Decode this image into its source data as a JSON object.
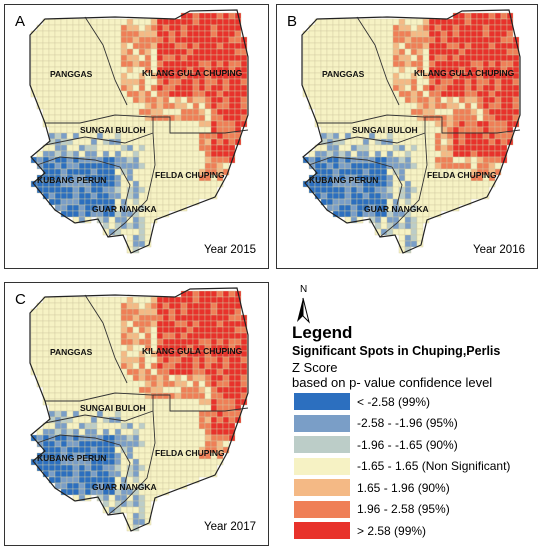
{
  "panels": [
    {
      "letter": "A",
      "year": "Year 2015",
      "hot": "low"
    },
    {
      "letter": "B",
      "year": "Year 2016",
      "hot": "high"
    },
    {
      "letter": "C",
      "year": "Year 2017",
      "hot": "low"
    }
  ],
  "regions": {
    "panggas": "PANGGAS",
    "kilang": "KILANG GULA CHUPING",
    "sungai": "SUNGAI BULOH",
    "kubang": "KUBANG PERUN",
    "felda": "FELDA CHUPING",
    "guar": "GUAR NANGKA"
  },
  "legend": {
    "north": "N",
    "title": "Legend",
    "subtitle": "Significant Spots in Chuping,Perlis",
    "zscore": "Z Score",
    "basis": "based on p- value confidence level",
    "items": [
      {
        "label": "< -2.58 (99%)",
        "color": "#2c6fbf"
      },
      {
        "label": "-2.58 - -1.96 (95%)",
        "color": "#7a9ec7"
      },
      {
        "label": "-1.96 - -1.65 (90%)",
        "color": "#bccdc8"
      },
      {
        "label": "-1.65 - 1.65 (Non Significant)",
        "color": "#f6f2c4"
      },
      {
        "label": "1.65 - 1.96 (90%)",
        "color": "#f4b985"
      },
      {
        "label": "1.96 - 2.58 (95%)",
        "color": "#ef7f57"
      },
      {
        "label": "> 2.58 (99%)",
        "color": "#e8322b"
      }
    ]
  }
}
